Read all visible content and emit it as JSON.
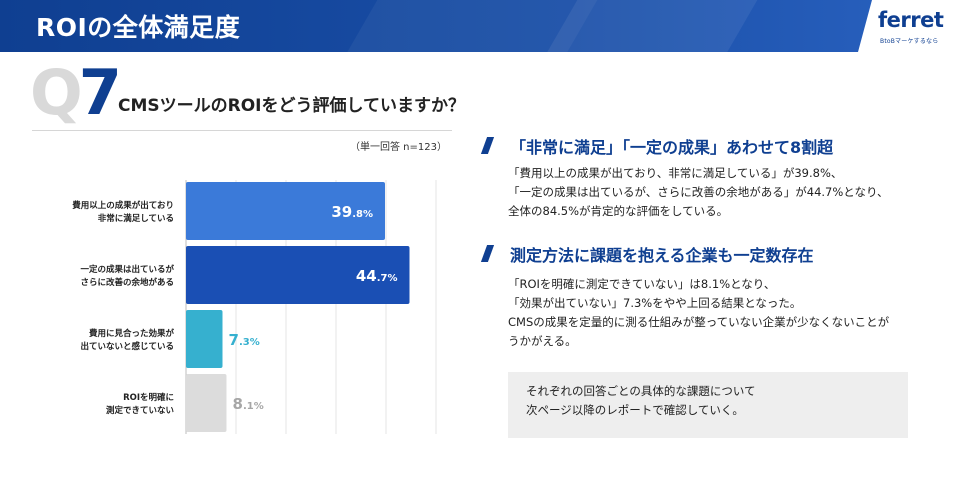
{
  "header": {
    "title": "ROIの全体満足度",
    "logo_text": "ferret",
    "logo_sub": "BtoBマーケするなら"
  },
  "question": {
    "prefix": "Q",
    "number": "7",
    "title": "CMSツールのROIをどう評価していますか？",
    "note": "（単一回答 n=123）"
  },
  "chart_data": {
    "type": "bar",
    "orientation": "horizontal",
    "categories": [
      [
        "費用以上の成果が出ており",
        "非常に満足している"
      ],
      [
        "一定の成果は出ているが",
        "さらに改善の余地がある"
      ],
      [
        "費用に見合った効果が",
        "出ていないと感じている"
      ],
      [
        "ROIを明確に",
        "測定できていない"
      ]
    ],
    "values": [
      39.8,
      44.7,
      7.3,
      8.1
    ],
    "value_labels": [
      {
        "int": "39",
        "dec": ".8%"
      },
      {
        "int": "44",
        "dec": ".7%"
      },
      {
        "int": "7",
        "dec": ".3%"
      },
      {
        "int": "8",
        "dec": ".1%"
      }
    ],
    "colors": [
      "#3b7ad9",
      "#1a4fb4",
      "#36b0cf",
      "#dcdcdc"
    ],
    "label_colors": [
      "#ffffff",
      "#ffffff",
      "#36b0cf",
      "#a6a6a6"
    ],
    "xlim": [
      0,
      50
    ],
    "grid": true
  },
  "findings": [
    {
      "title": "「非常に満足」「一定の成果」あわせて8割超",
      "lines": [
        "「費用以上の成果が出ており、非常に満足している」が39.8%、",
        "「一定の成果は出ているが、さらに改善の余地がある」が44.7%となり、",
        "全体の84.5%が肯定的な評価をしている。"
      ]
    },
    {
      "title": "測定方法に課題を抱える企業も一定数存在",
      "lines": [
        "「ROIを明確に測定できていない」は8.1%となり、",
        "「効果が出ていない」7.3%をやや上回る結果となった。",
        "CMSの成果を定量的に測る仕組みが整っていない企業が少なくないことが",
        "うかがえる。"
      ]
    }
  ],
  "summary_box": {
    "lines": [
      "それぞれの回答ごとの具体的な課題について",
      "次ページ以降のレポートで確認していく。"
    ]
  }
}
